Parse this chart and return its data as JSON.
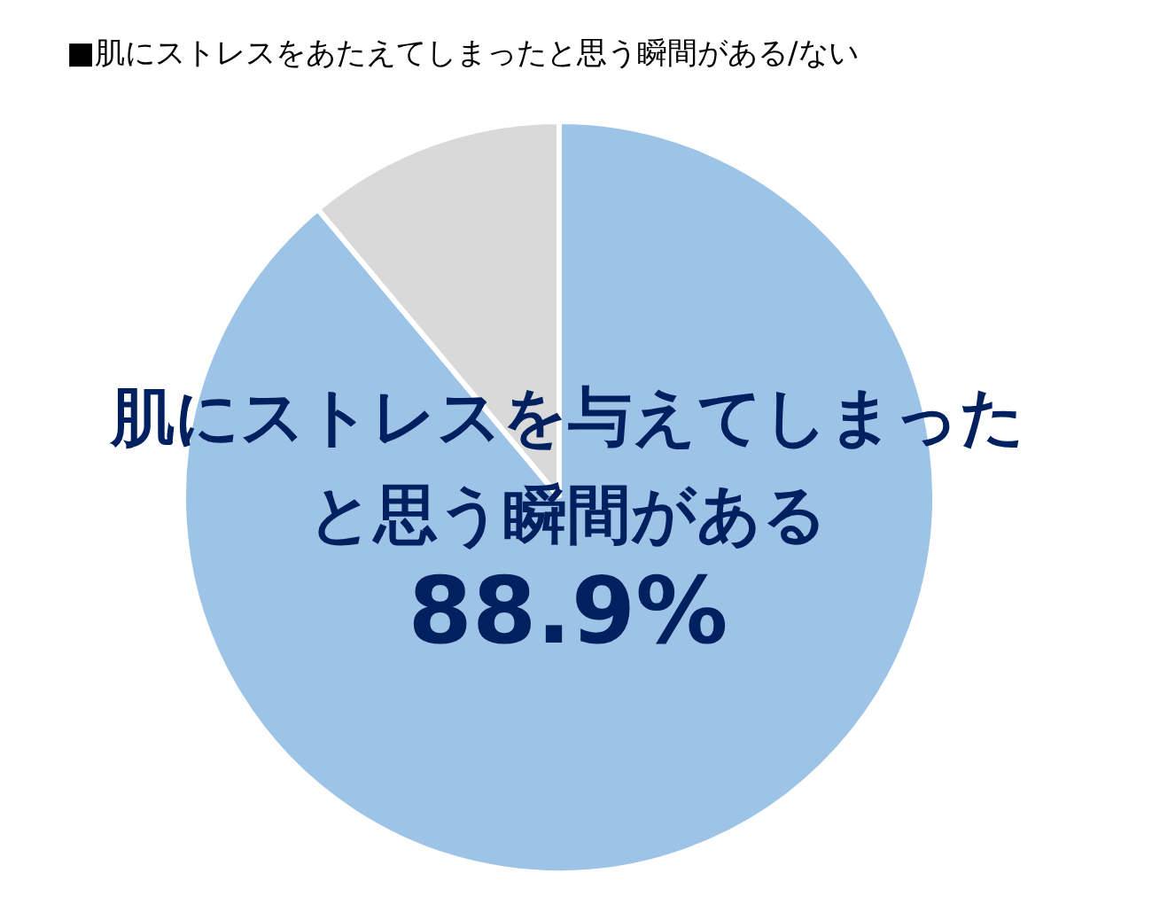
{
  "chart_data": {
    "type": "pie",
    "title": "■肌にストレスをあたえてしまったと思う瞬間がある/ない",
    "categories": [
      "肌にストレスを与えてしまったと思う瞬間がある",
      null
    ],
    "values": [
      88.9,
      11.1
    ],
    "colors": [
      "#9dc3e6",
      "#d9d9d9"
    ],
    "value_labels": [
      "88.9%",
      null
    ]
  }
}
